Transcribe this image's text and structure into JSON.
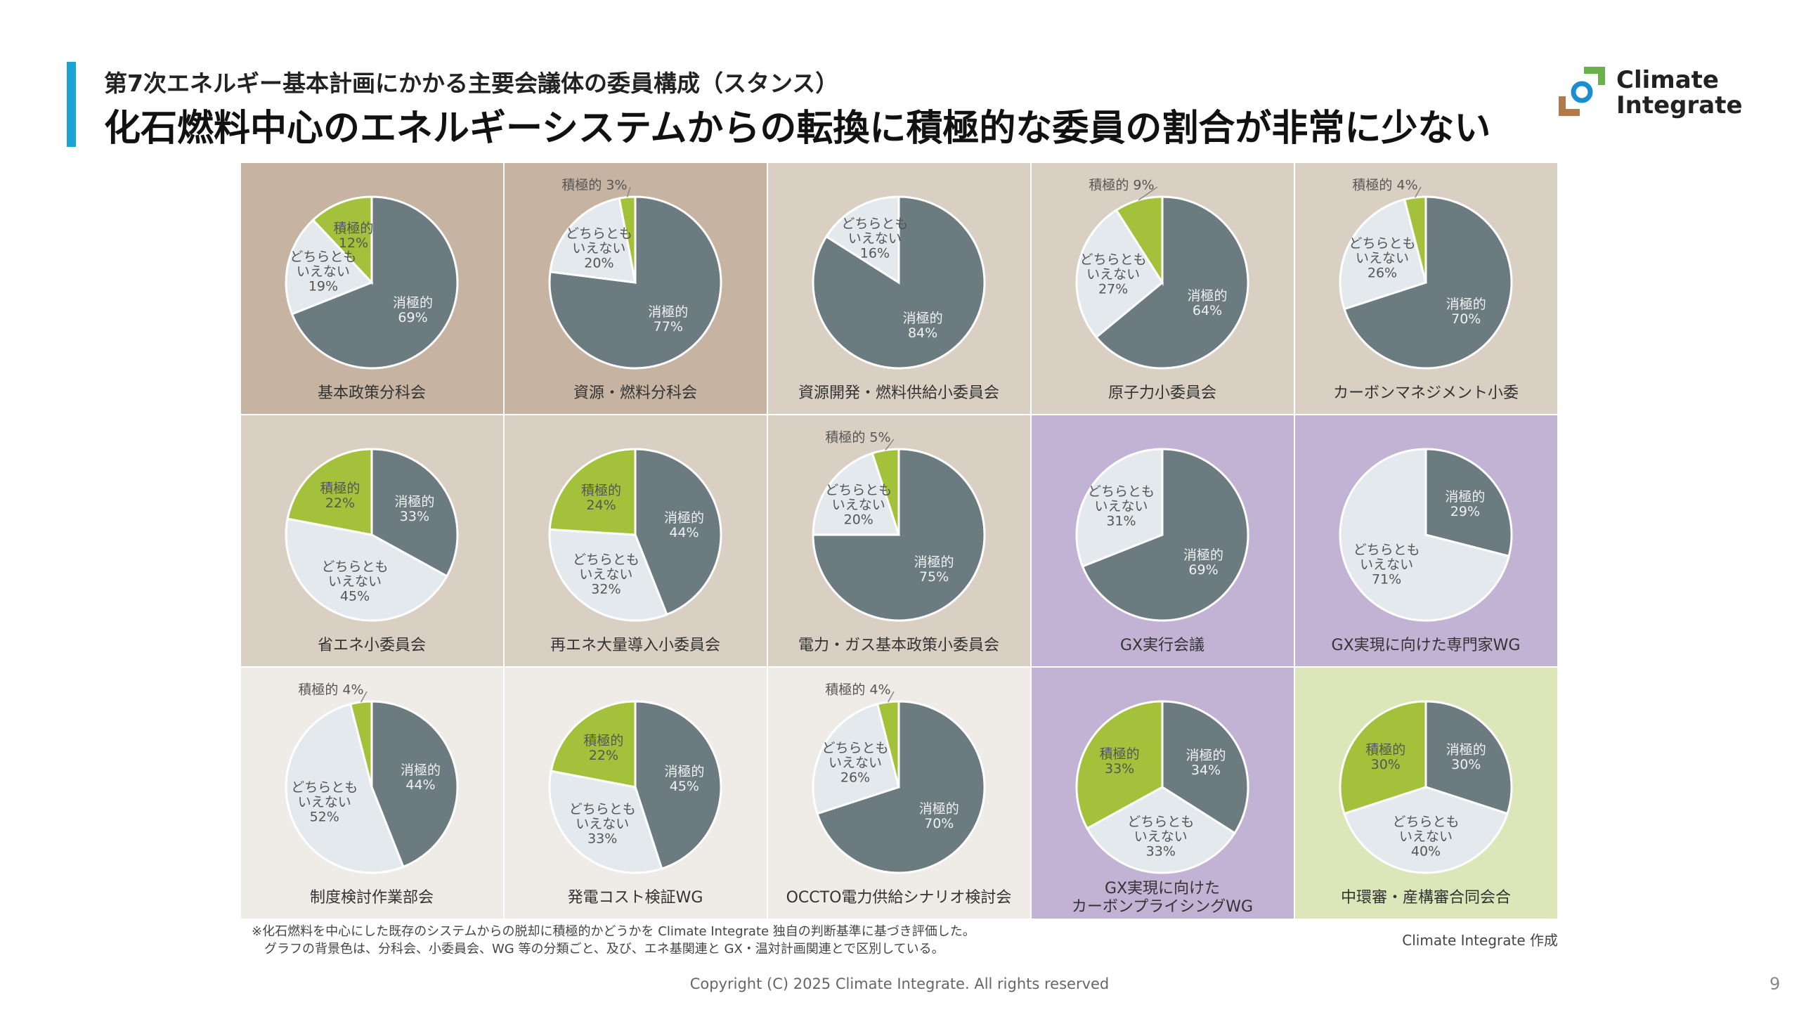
{
  "header": {
    "subtitle": "第7次エネルギー基本計画にかかる主要会議体の委員構成（スタンス）",
    "title": "化石燃料中心のエネルギーシステムからの転換に積極的な委員の割合が非常に少ない"
  },
  "logo": {
    "text": "Climate\nIntegrate"
  },
  "chart_data": [
    {
      "type": "pie",
      "title": "基本政策分科会",
      "background": "#c6b3a1",
      "categories": [
        "消極的",
        "どちらとも\nいえない",
        "積極的"
      ],
      "values": [
        69,
        19,
        12
      ],
      "value_labels": [
        "69%",
        "19%",
        "12%"
      ],
      "colors": [
        "#6b7b80",
        "#e4e9ed",
        "#a3c13a"
      ]
    },
    {
      "type": "pie",
      "title": "資源・燃料分科会",
      "background": "#c6b3a1",
      "categories": [
        "消極的",
        "どちらとも\nいえない",
        "積極的"
      ],
      "values": [
        77,
        20,
        3
      ],
      "value_labels": [
        "77%",
        "20%",
        "3%"
      ],
      "colors": [
        "#6b7b80",
        "#e4e9ed",
        "#a3c13a"
      ]
    },
    {
      "type": "pie",
      "title": "資源開発・燃料供給小委員会",
      "background": "#d9d0c3",
      "categories": [
        "消極的",
        "どちらとも\nいえない"
      ],
      "values": [
        84,
        16
      ],
      "value_labels": [
        "84%",
        "16%"
      ],
      "colors": [
        "#6b7b80",
        "#e4e9ed"
      ]
    },
    {
      "type": "pie",
      "title": "原子力小委員会",
      "background": "#d9d0c3",
      "categories": [
        "消極的",
        "どちらとも\nいえない",
        "積極的"
      ],
      "values": [
        64,
        27,
        9
      ],
      "value_labels": [
        "64%",
        "27%",
        "9%"
      ],
      "colors": [
        "#6b7b80",
        "#e4e9ed",
        "#a3c13a"
      ]
    },
    {
      "type": "pie",
      "title": "カーボンマネジメント小委",
      "background": "#d9d0c3",
      "categories": [
        "消極的",
        "どちらとも\nいえない",
        "積極的"
      ],
      "values": [
        70,
        26,
        4
      ],
      "value_labels": [
        "70%",
        "26%",
        "4%"
      ],
      "colors": [
        "#6b7b80",
        "#e4e9ed",
        "#a3c13a"
      ]
    },
    {
      "type": "pie",
      "title": "省エネ小委員会",
      "background": "#d9d0c3",
      "categories": [
        "消極的",
        "どちらとも\nいえない",
        "積極的"
      ],
      "values": [
        33,
        45,
        22
      ],
      "value_labels": [
        "33%",
        "45%",
        "22%"
      ],
      "colors": [
        "#6b7b80",
        "#e4e9ed",
        "#a3c13a"
      ]
    },
    {
      "type": "pie",
      "title": "再エネ大量導入小委員会",
      "background": "#d9d0c3",
      "categories": [
        "消極的",
        "どちらとも\nいえない",
        "積極的"
      ],
      "values": [
        44,
        32,
        24
      ],
      "value_labels": [
        "44%",
        "32%",
        "24%"
      ],
      "colors": [
        "#6b7b80",
        "#e4e9ed",
        "#a3c13a"
      ]
    },
    {
      "type": "pie",
      "title": "電力・ガス基本政策小委員会",
      "background": "#d9d0c3",
      "categories": [
        "消極的",
        "どちらとも\nいえない",
        "積極的"
      ],
      "values": [
        75,
        20,
        5
      ],
      "value_labels": [
        "75%",
        "20%",
        "5%"
      ],
      "colors": [
        "#6b7b80",
        "#e4e9ed",
        "#a3c13a"
      ]
    },
    {
      "type": "pie",
      "title": "GX実行会議",
      "background": "#c2b3d5",
      "categories": [
        "消極的",
        "どちらとも\nいえない"
      ],
      "values": [
        69,
        31
      ],
      "value_labels": [
        "69%",
        "31%"
      ],
      "colors": [
        "#6b7b80",
        "#e4e9ed"
      ]
    },
    {
      "type": "pie",
      "title": "GX実現に向けた専門家WG",
      "background": "#c2b3d5",
      "categories": [
        "消極的",
        "どちらとも\nいえない"
      ],
      "values": [
        29,
        71
      ],
      "value_labels": [
        "29%",
        "71%"
      ],
      "colors": [
        "#6b7b80",
        "#e4e9ed"
      ]
    },
    {
      "type": "pie",
      "title": "制度検討作業部会",
      "background": "#efebe7",
      "categories": [
        "消極的",
        "どちらとも\nいえない",
        "積極的"
      ],
      "values": [
        44,
        52,
        4
      ],
      "value_labels": [
        "44%",
        "52%",
        "4%"
      ],
      "colors": [
        "#6b7b80",
        "#e4e9ed",
        "#a3c13a"
      ]
    },
    {
      "type": "pie",
      "title": "発電コスト検証WG",
      "background": "#efebe7",
      "categories": [
        "消極的",
        "どちらとも\nいえない",
        "積極的"
      ],
      "values": [
        45,
        33,
        22
      ],
      "value_labels": [
        "45%",
        "33%",
        "22%"
      ],
      "colors": [
        "#6b7b80",
        "#e4e9ed",
        "#a3c13a"
      ]
    },
    {
      "type": "pie",
      "title": "OCCTO電力供給シナリオ検討会",
      "background": "#efebe7",
      "categories": [
        "消極的",
        "どちらとも\nいえない",
        "積極的"
      ],
      "values": [
        70,
        26,
        4
      ],
      "value_labels": [
        "70%",
        "26%",
        "4%"
      ],
      "colors": [
        "#6b7b80",
        "#e4e9ed",
        "#a3c13a"
      ]
    },
    {
      "type": "pie",
      "title": "GX実現に向けた\nカーボンプライシングWG",
      "background": "#c2b3d5",
      "categories": [
        "消極的",
        "どちらとも\nいえない",
        "積極的"
      ],
      "values": [
        34,
        33,
        33
      ],
      "value_labels": [
        "34%",
        "33%",
        "33%"
      ],
      "colors": [
        "#6b7b80",
        "#e4e9ed",
        "#a3c13a"
      ]
    },
    {
      "type": "pie",
      "title": "中環審・産構審合同会合",
      "background": "#dde6b8",
      "categories": [
        "消極的",
        "どちらとも\nいえない",
        "積極的"
      ],
      "values": [
        30,
        40,
        30
      ],
      "value_labels": [
        "30%",
        "40%",
        "30%"
      ],
      "colors": [
        "#6b7b80",
        "#e4e9ed",
        "#a3c13a"
      ]
    }
  ],
  "footnotes": [
    "※化石燃料を中心にした既存のシステムからの脱却に積極的かどうかを Climate Integrate 独自の判断基準に基づき評価した。",
    "グラフの背景色は、分科会、小委員会、WG 等の分類ごと、及び、エネ基関連と GX・温対計画関連とで区別している。"
  ],
  "credit": "Climate Integrate 作成",
  "copyright": "Copyright (C) 2025 Climate Integrate. All rights reserved",
  "page_number": "9"
}
